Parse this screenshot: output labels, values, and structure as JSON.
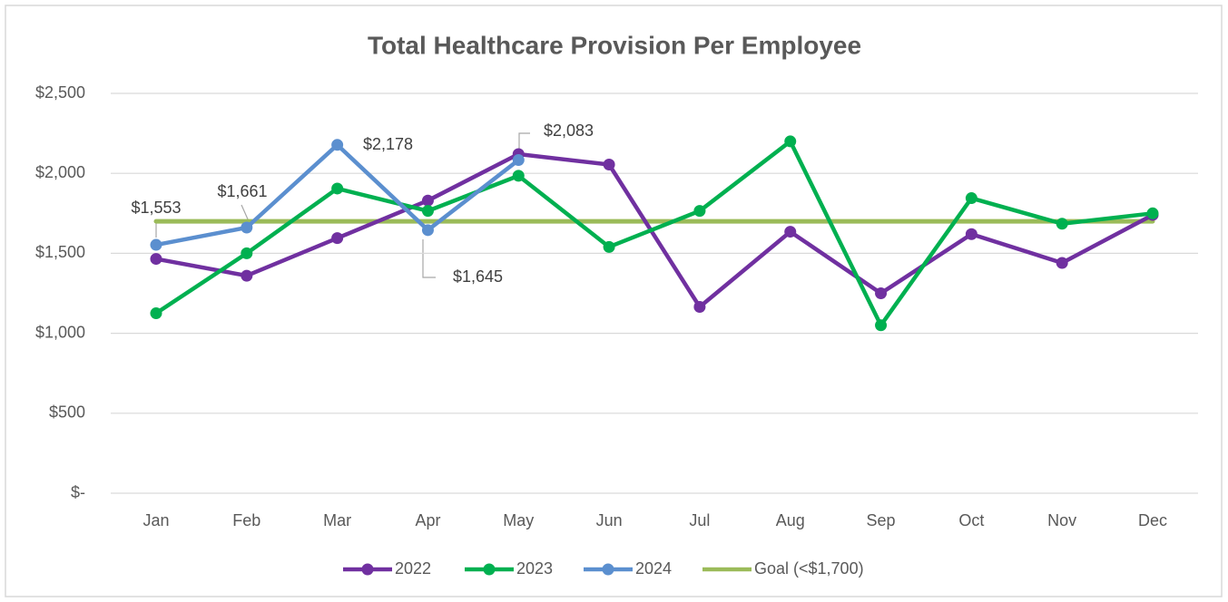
{
  "chart_data": {
    "type": "line",
    "title": "Total Healthcare Provision Per Employee",
    "categories": [
      "Jan",
      "Feb",
      "Mar",
      "Apr",
      "May",
      "Jun",
      "Jul",
      "Aug",
      "Sep",
      "Oct",
      "Nov",
      "Dec"
    ],
    "series": [
      {
        "name": "2022",
        "color": "#7030a0",
        "markers": true,
        "values": [
          1465,
          1360,
          1595,
          1830,
          2120,
          2055,
          1165,
          1635,
          1250,
          1620,
          1440,
          1740
        ]
      },
      {
        "name": "2023",
        "color": "#00b050",
        "markers": true,
        "values": [
          1125,
          1500,
          1905,
          1765,
          1985,
          1540,
          1765,
          2200,
          1050,
          1845,
          1685,
          1750
        ]
      },
      {
        "name": "2024",
        "color": "#5b8fcf",
        "markers": true,
        "values": [
          1553,
          1661,
          2178,
          1645,
          2083,
          null,
          null,
          null,
          null,
          null,
          null,
          null
        ],
        "value_labels": [
          "$1,553",
          "$1,661",
          "$2,178",
          "$1,645",
          "$2,083",
          null,
          null,
          null,
          null,
          null,
          null,
          null
        ]
      },
      {
        "name": "Goal (<$1,700)",
        "color": "#9bbb59",
        "markers": false,
        "values": [
          1700,
          1700,
          1700,
          1700,
          1700,
          1700,
          1700,
          1700,
          1700,
          1700,
          1700,
          1700
        ]
      }
    ],
    "ylim": [
      0,
      2500
    ],
    "yticks": [
      {
        "value": 0,
        "label": "$-"
      },
      {
        "value": 500,
        "label": "$500"
      },
      {
        "value": 1000,
        "label": "$1,000"
      },
      {
        "value": 1500,
        "label": "$1,500"
      },
      {
        "value": 2000,
        "label": "$2,000"
      },
      {
        "value": 2500,
        "label": "$2,500"
      }
    ],
    "grid": true,
    "legend": "bottom"
  }
}
